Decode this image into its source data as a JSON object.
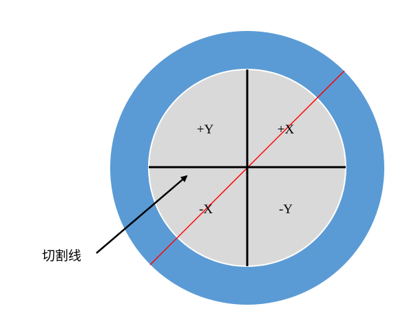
{
  "quadrants": {
    "top_left": "+Y",
    "top_right": "+X",
    "bottom_left": "-X",
    "bottom_right": "-Y"
  },
  "callout": {
    "label": "切割线"
  },
  "colors": {
    "outer_ring": "#5b9bd5",
    "inner_disc": "#d9d9d9",
    "inner_border": "#ffffff",
    "axes": "#000000",
    "cut_line": "#ff0000",
    "arrow": "#000000"
  }
}
